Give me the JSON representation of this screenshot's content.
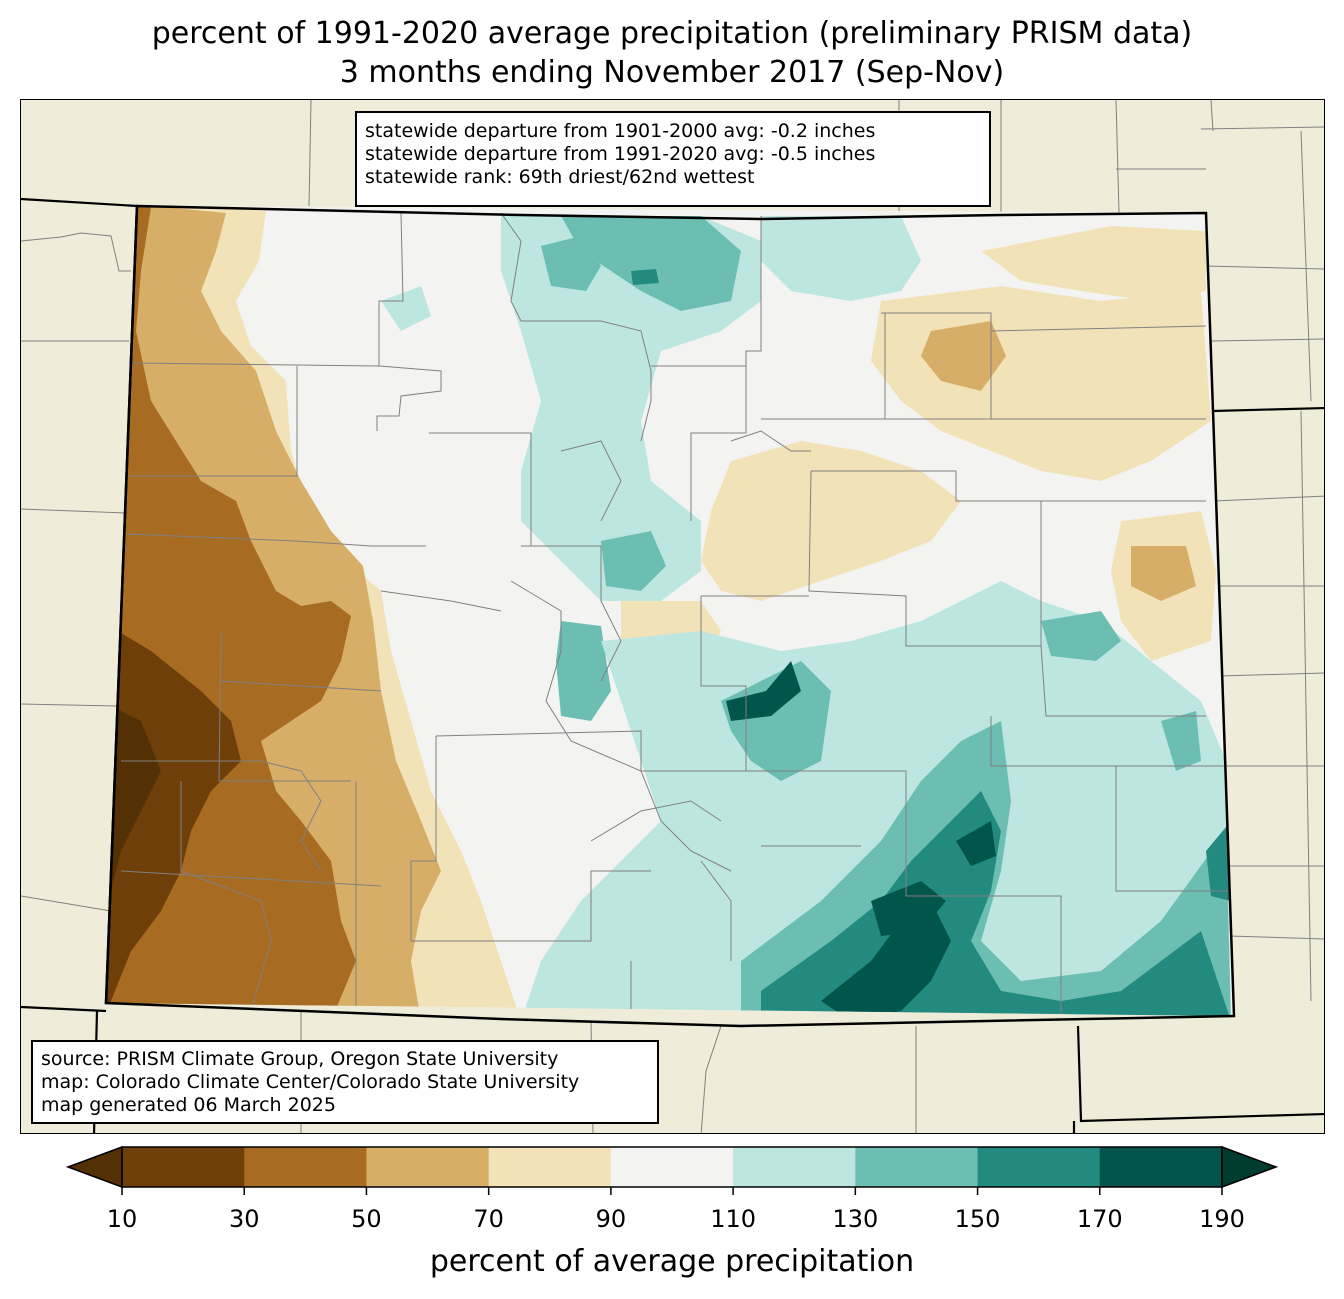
{
  "title": {
    "line1": "percent of 1991-2020 average precipitation (preliminary PRISM data)",
    "line2": "3 months ending November 2017 (Sep-Nov)"
  },
  "stats": {
    "departure_1901_2000": "statewide departure from 1901-2000 avg: -0.2 inches",
    "departure_1991_2020": "statewide departure from 1991-2020 avg: -0.5 inches",
    "rank": "statewide rank: 69th driest/62nd wettest"
  },
  "source": {
    "line1": "source: PRISM Climate Group, Oregon State University",
    "line2": "map: Colorado Climate Center/Colorado State University",
    "line3": "map generated 06 March 2025"
  },
  "colorbar": {
    "label": "percent of average precipitation",
    "ticks": [
      "10",
      "30",
      "50",
      "70",
      "90",
      "110",
      "130",
      "150",
      "170",
      "190"
    ],
    "under_color": "#543005",
    "over_color": "#003c30",
    "bins": [
      {
        "range": "10-30",
        "color": "#6f3f09"
      },
      {
        "range": "30-50",
        "color": "#a86b22"
      },
      {
        "range": "50-70",
        "color": "#d6ae68"
      },
      {
        "range": "70-90",
        "color": "#f2e2b8"
      },
      {
        "range": "90-110",
        "color": "#f3f4f2"
      },
      {
        "range": "110-130",
        "color": "#bde6e1"
      },
      {
        "range": "130-150",
        "color": "#6cbeb3"
      },
      {
        "range": "150-170",
        "color": "#238a7f"
      },
      {
        "range": "170-190",
        "color": "#02554a"
      }
    ]
  },
  "map": {
    "background_color": "#efedd9",
    "state_border_color": "#000000",
    "county_line_color": "#808080"
  }
}
